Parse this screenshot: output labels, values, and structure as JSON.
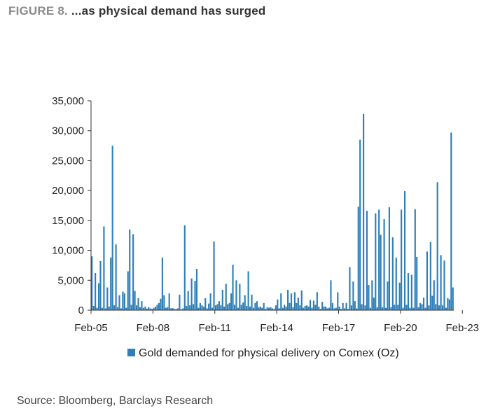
{
  "figure": {
    "label": "FIGURE 8.",
    "title": "...as physical demand has surged",
    "source": "Source: Bloomberg, Barclays Research"
  },
  "colors": {
    "bar": "#2e7fb8",
    "axis": "#333333",
    "text": "#222222"
  },
  "chart_data": {
    "type": "bar",
    "title": "...as physical demand has surged",
    "xlabel": "",
    "ylabel": "",
    "ylim": [
      0,
      35000
    ],
    "yticks": [
      0,
      5000,
      10000,
      15000,
      20000,
      25000,
      30000,
      35000
    ],
    "ytick_labels": [
      "0",
      "5,000",
      "10,000",
      "15,000",
      "20,000",
      "25,000",
      "30,000",
      "35,000"
    ],
    "xtick_labels": [
      "Feb-05",
      "Feb-08",
      "Feb-11",
      "Feb-14",
      "Feb-17",
      "Feb-20",
      "Feb-23"
    ],
    "grid": false,
    "legend": {
      "position": "bottom",
      "entries": [
        "Gold demanded for physical delivery on Comex (Oz)"
      ]
    },
    "series": [
      {
        "name": "Gold demanded for physical delivery on Comex (Oz)",
        "start": "Feb-05",
        "frequency": "month",
        "values": [
          9000,
          700,
          6200,
          400,
          4500,
          8200,
          400,
          14000,
          300,
          3800,
          600,
          8800,
          27500,
          800,
          11000,
          500,
          2500,
          300,
          3100,
          2800,
          400,
          6500,
          13500,
          900,
          12700,
          3200,
          800,
          2000,
          500,
          1500,
          400,
          600,
          250,
          500,
          300,
          200,
          400,
          600,
          900,
          1200,
          1900,
          8800,
          2500,
          400,
          500,
          2800,
          300,
          350,
          200,
          200,
          300,
          2600,
          150,
          300,
          14200,
          700,
          3200,
          800,
          5300,
          1000,
          4900,
          6900,
          400,
          1200,
          800,
          600,
          2000,
          300,
          1100,
          2800,
          400,
          11500,
          800,
          1000,
          1500,
          800,
          3400,
          600,
          4400,
          1000,
          1200,
          2800,
          7600,
          900,
          5000,
          400,
          4400,
          900,
          1300,
          2500,
          700,
          6500,
          600,
          2600,
          400,
          1200,
          1500,
          500,
          600,
          400,
          1200,
          200,
          500,
          400,
          500,
          300,
          200,
          800,
          1800,
          300,
          2800,
          400,
          900,
          600,
          3400,
          1200,
          2800,
          500,
          3000,
          1200,
          2100,
          800,
          3300,
          400,
          700,
          800,
          600,
          1700,
          400,
          1600,
          900,
          3000,
          600,
          200,
          1400,
          600,
          600,
          300,
          400,
          5000,
          1200,
          300,
          400,
          3000,
          600,
          200,
          1200,
          300,
          1200,
          200,
          7200,
          800,
          4800,
          1500,
          300,
          17300,
          28500,
          1000,
          32800,
          800,
          16600,
          4200,
          400,
          5000,
          2100,
          16200,
          500,
          16800,
          12600,
          500,
          15200,
          400,
          4800,
          17200,
          500,
          12200,
          900,
          8800,
          900,
          4600,
          16800,
          400,
          19900,
          900,
          6200,
          400,
          5900,
          400,
          16900,
          8900,
          500,
          1200,
          1000,
          2100,
          400,
          9800,
          800,
          11400,
          2400,
          5000,
          1000,
          21400,
          800,
          9200,
          800,
          8300,
          400,
          2000,
          1800,
          29700,
          3800
        ]
      }
    ]
  }
}
